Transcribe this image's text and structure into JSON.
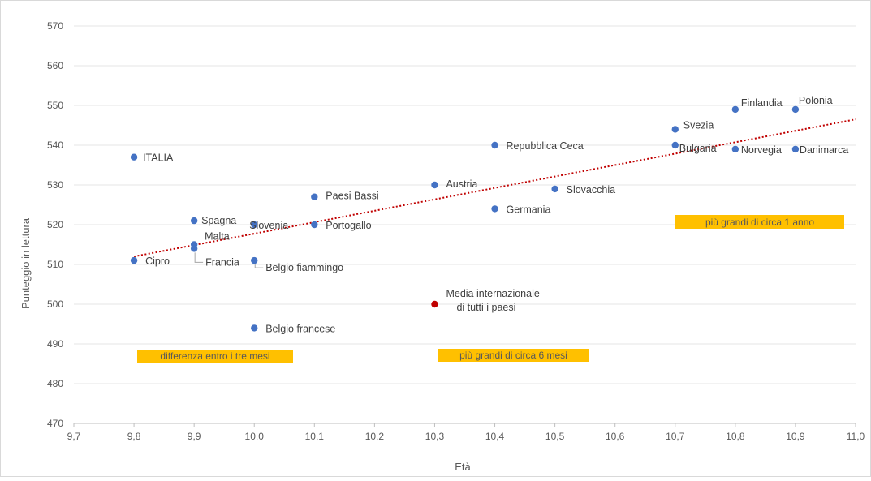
{
  "chart_data": {
    "type": "scatter",
    "xlabel": "Età",
    "ylabel": "Punteggio in lettura",
    "xlim": [
      9.7,
      11.0
    ],
    "ylim": [
      470,
      570
    ],
    "x_ticks": [
      9.7,
      9.8,
      9.9,
      10.0,
      10.1,
      10.2,
      10.3,
      10.4,
      10.5,
      10.6,
      10.7,
      10.8,
      10.9,
      11.0
    ],
    "x_tick_labels": [
      "9,7",
      "9,8",
      "9,9",
      "10,0",
      "10,1",
      "10,2",
      "10,3",
      "10,4",
      "10,5",
      "10,6",
      "10,7",
      "10,8",
      "10,9",
      "11,0"
    ],
    "y_ticks": [
      470,
      480,
      490,
      500,
      510,
      520,
      530,
      540,
      550,
      560,
      570
    ],
    "y_tick_labels": [
      "470",
      "480",
      "490",
      "500",
      "510",
      "520",
      "530",
      "540",
      "550",
      "560",
      "570"
    ],
    "grid": "horizontal",
    "colors": {
      "point": "#4472C4",
      "highlight": "#C00000",
      "trend": "#C00000",
      "box": "#FFC000"
    },
    "points": [
      {
        "x": 9.8,
        "y": 537,
        "label": "ITALIA"
      },
      {
        "x": 9.8,
        "y": 511,
        "label": "Cipro"
      },
      {
        "x": 9.9,
        "y": 521,
        "label": "Spagna"
      },
      {
        "x": 9.9,
        "y": 515,
        "label": "Malta"
      },
      {
        "x": 9.9,
        "y": 514,
        "label": "Francia"
      },
      {
        "x": 10.0,
        "y": 520,
        "label": "Slovenia"
      },
      {
        "x": 10.0,
        "y": 511,
        "label": "Belgio fiammingo"
      },
      {
        "x": 10.0,
        "y": 494,
        "label": "Belgio francese"
      },
      {
        "x": 10.1,
        "y": 527,
        "label": "Paesi Bassi"
      },
      {
        "x": 10.1,
        "y": 520,
        "label": "Portogallo"
      },
      {
        "x": 10.3,
        "y": 530,
        "label": "Austria"
      },
      {
        "x": 10.4,
        "y": 540,
        "label": "Repubblica Ceca"
      },
      {
        "x": 10.4,
        "y": 524,
        "label": "Germania"
      },
      {
        "x": 10.5,
        "y": 529,
        "label": "Slovacchia"
      },
      {
        "x": 10.7,
        "y": 544,
        "label": "Svezia"
      },
      {
        "x": 10.7,
        "y": 540,
        "label": "Bulgaria"
      },
      {
        "x": 10.8,
        "y": 549,
        "label": "Finlandia"
      },
      {
        "x": 10.8,
        "y": 539,
        "label": "Norvegia"
      },
      {
        "x": 10.9,
        "y": 549,
        "label": "Polonia"
      },
      {
        "x": 10.9,
        "y": 539,
        "label": "Danimarca"
      },
      {
        "x": 10.3,
        "y": 500,
        "label": "Media internazionale di tutti i paesi",
        "label_lines": [
          "Media internazionale",
          "di tutti i paesi"
        ],
        "highlight": true
      }
    ],
    "trendline": {
      "type": "linear",
      "from": [
        9.8,
        512
      ],
      "to": [
        11.0,
        546.5
      ]
    },
    "annotations": [
      {
        "text": "differenza entro i tre mesi"
      },
      {
        "text": "più grandi di circa 6 mesi"
      },
      {
        "text": "più grandi di circa 1 anno"
      }
    ]
  }
}
